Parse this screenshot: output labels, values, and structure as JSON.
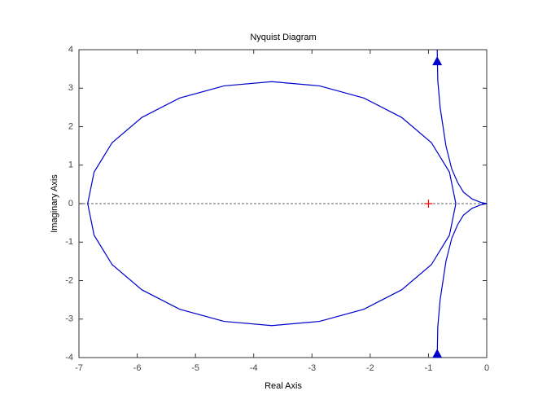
{
  "chart_data": {
    "type": "line",
    "title": "Nyquist Diagram",
    "xlabel": "Real Axis",
    "ylabel": "Imaginary Axis",
    "xlim": [
      -7,
      0
    ],
    "ylim": [
      -4,
      4
    ],
    "xticks": [
      -7,
      -6,
      -5,
      -4,
      -3,
      -2,
      -1,
      0
    ],
    "yticks": [
      -4,
      -3,
      -2,
      -1,
      0,
      1,
      2,
      3,
      4
    ],
    "zero_line": true,
    "series": [
      {
        "color": "#0000cc",
        "x": [
          -0.53,
          -0.64,
          -0.95,
          -1.46,
          -2.11,
          -2.87,
          -3.69,
          -4.51,
          -5.27,
          -5.92,
          -6.43,
          -6.74,
          -6.85,
          -6.74,
          -6.43,
          -5.92,
          -5.27,
          -4.51,
          -3.69,
          -2.87,
          -2.11,
          -1.46,
          -0.95,
          -0.64,
          -0.53
        ],
        "values": [
          0,
          0.82,
          1.585,
          2.24,
          2.745,
          3.06,
          3.17,
          3.06,
          2.745,
          2.24,
          1.585,
          0.82,
          0,
          -0.82,
          -1.585,
          -2.24,
          -2.745,
          -3.06,
          -3.17,
          -3.06,
          -2.745,
          -2.24,
          -1.585,
          -0.82,
          0
        ]
      },
      {
        "color": "#0000cc",
        "x": [
          -0.85,
          -0.84,
          -0.8,
          -0.7,
          -0.6,
          -0.5,
          -0.4,
          -0.25,
          -0.1,
          0
        ],
        "values": [
          4,
          3.2,
          2.5,
          1.5,
          0.9,
          0.55,
          0.3,
          0.12,
          0.03,
          0
        ]
      },
      {
        "color": "#0000cc",
        "x": [
          -0.85,
          -0.84,
          -0.8,
          -0.7,
          -0.6,
          -0.5,
          -0.4,
          -0.25,
          -0.1,
          0
        ],
        "values": [
          -4,
          -3.2,
          -2.5,
          -1.5,
          -0.9,
          -0.55,
          -0.3,
          -0.12,
          -0.03,
          0
        ]
      }
    ],
    "arrows": [
      {
        "x": -0.85,
        "y": 3.7
      },
      {
        "x": -0.85,
        "y": -3.9
      }
    ],
    "critical_point": {
      "x": -1,
      "y": 0,
      "color": "#ff0000"
    }
  }
}
